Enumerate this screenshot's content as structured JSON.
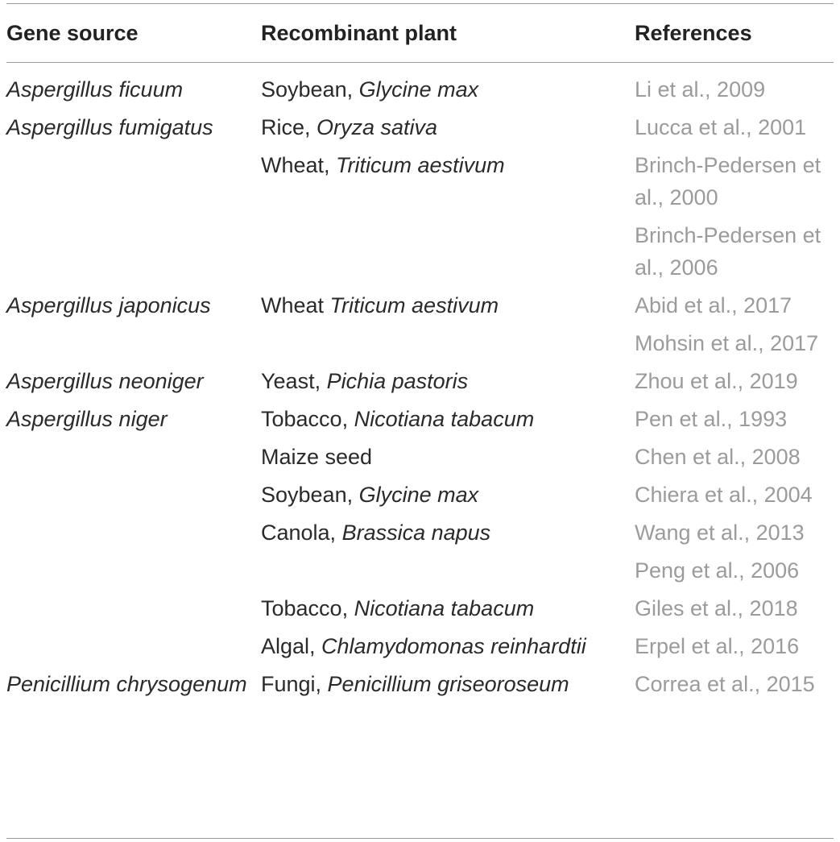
{
  "table": {
    "headers": {
      "gene_source": "Gene source",
      "recombinant_plant": "Recombinant plant",
      "references": "References"
    },
    "rows": [
      {
        "source": "Aspergillus ficuum",
        "plant_common": "Soybean, ",
        "plant_sci": "Glycine max",
        "refs": [
          "Li et al., 2009"
        ]
      },
      {
        "source": "Aspergillus fumigatus",
        "plant_common": "Rice, ",
        "plant_sci": "Oryza sativa",
        "refs": [
          "Lucca et al., 2001"
        ]
      },
      {
        "source": "",
        "plant_common": "Wheat, ",
        "plant_sci": "Triticum aestivum",
        "refs": [
          "Brinch-Pedersen et al., 2000",
          "Brinch-Pedersen et al., 2006"
        ]
      },
      {
        "source": "Aspergillus japonicus",
        "plant_common": "Wheat ",
        "plant_sci": "Triticum aestivum",
        "refs": [
          "Abid et al., 2017",
          "Mohsin et al., 2017"
        ]
      },
      {
        "source": "Aspergillus neoniger",
        "plant_common": "Yeast, ",
        "plant_sci": "Pichia pastoris",
        "refs": [
          "Zhou et al., 2019"
        ]
      },
      {
        "source": "Aspergillus niger",
        "plant_common": "Tobacco, ",
        "plant_sci": "Nicotiana tabacum",
        "refs": [
          "Pen et al., 1993"
        ]
      },
      {
        "source": "",
        "plant_common": "Maize seed",
        "plant_sci": "",
        "refs": [
          "Chen et al., 2008"
        ]
      },
      {
        "source": "",
        "plant_common": "Soybean, ",
        "plant_sci": "Glycine max",
        "refs": [
          "Chiera et al., 2004"
        ]
      },
      {
        "source": "",
        "plant_common": "Canola, ",
        "plant_sci": "Brassica napus",
        "refs": [
          "Wang et al., 2013",
          "Peng et al., 2006"
        ]
      },
      {
        "source": "",
        "plant_common": "Tobacco, ",
        "plant_sci": "Nicotiana tabacum",
        "refs": [
          "Giles et al., 2018"
        ]
      },
      {
        "source": "",
        "plant_common": "Algal, ",
        "plant_sci": "Chlamydomonas reinhardtii",
        "refs": [
          "Erpel et al., 2016"
        ]
      },
      {
        "source": "Penicillium chrysogenum",
        "plant_common": "Fungi, ",
        "plant_sci": "Penicillium griseoroseum",
        "refs": [
          "Correa et al., 2015"
        ]
      }
    ]
  }
}
